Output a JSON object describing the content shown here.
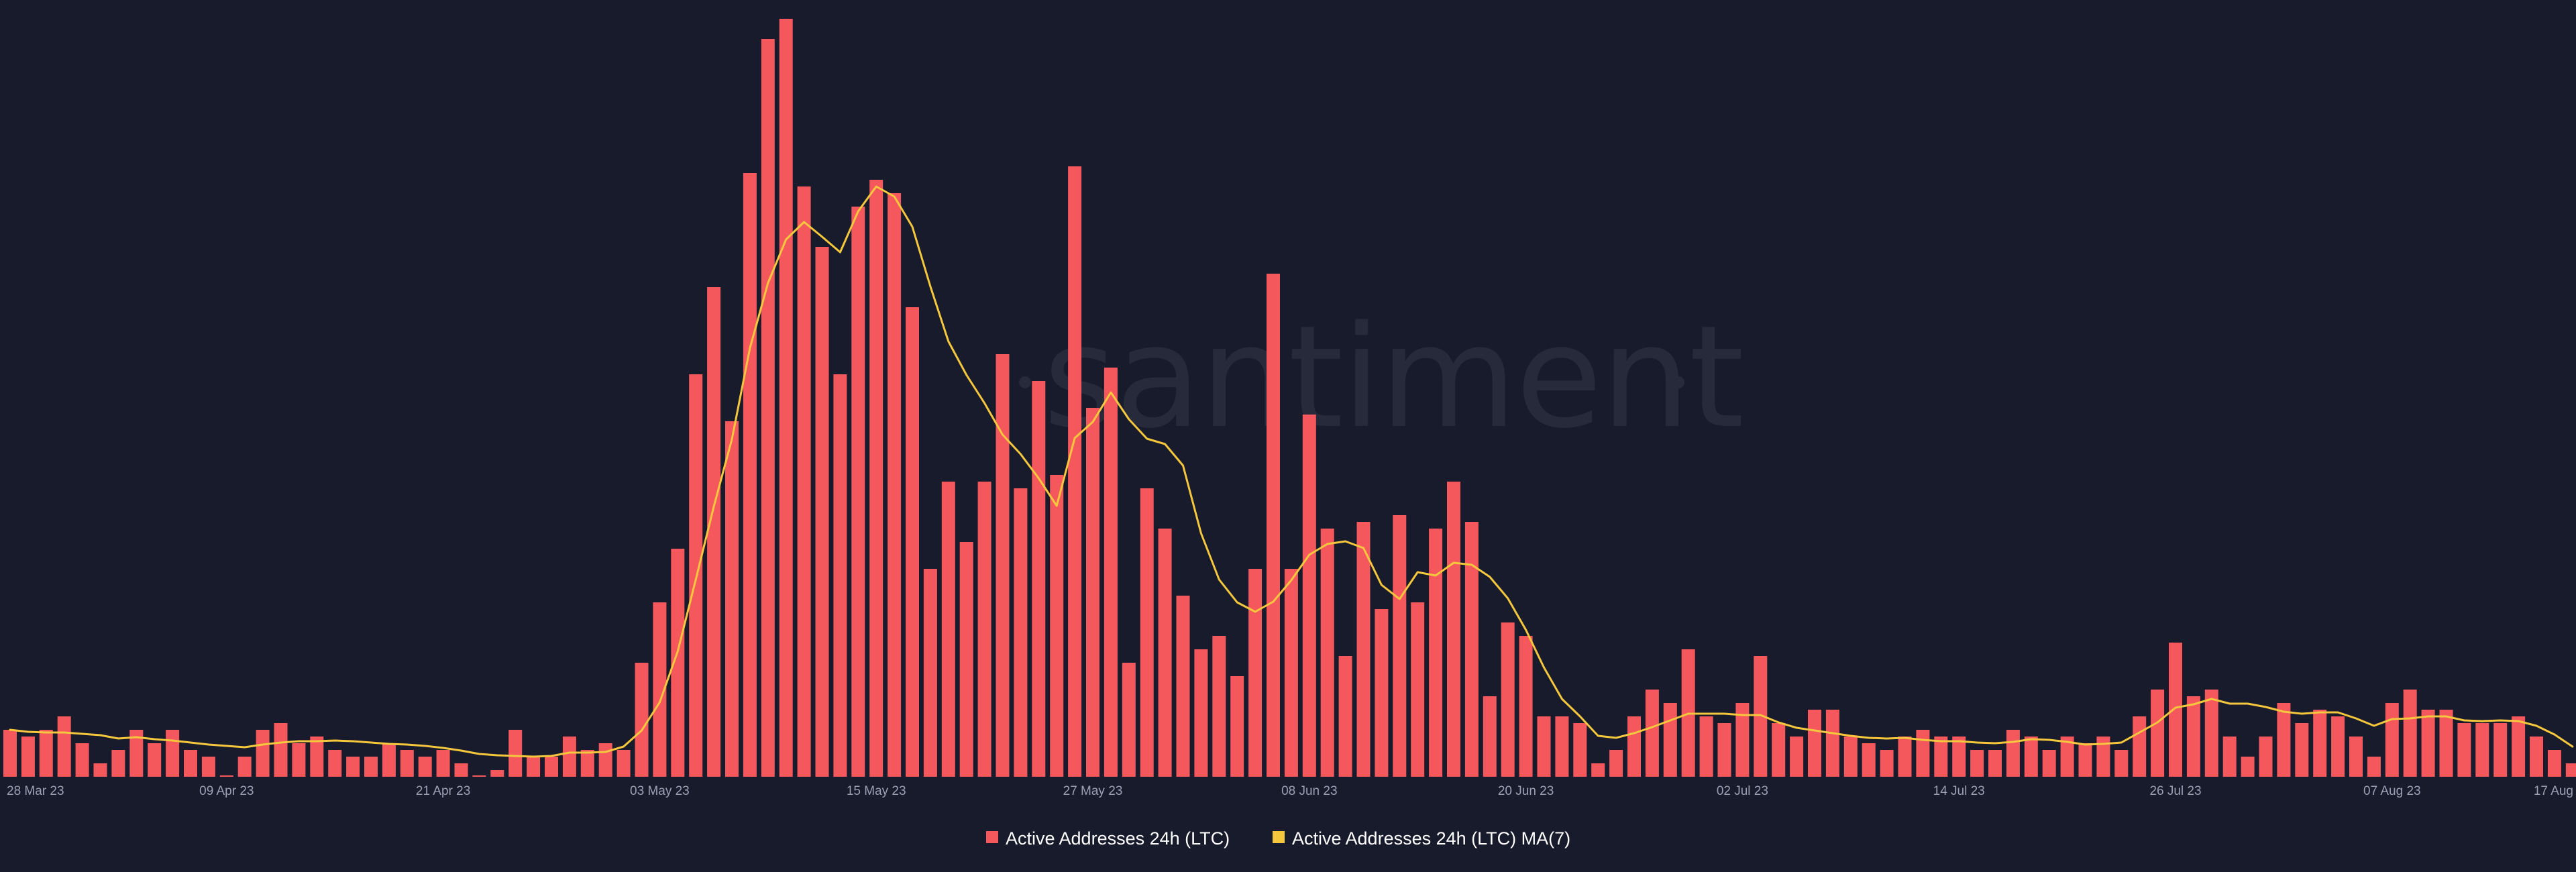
{
  "watermark": "santiment",
  "colors": {
    "background": "#181b2b",
    "bar": "#f4585d",
    "line": "#f5c73d",
    "tick_text": "#9aa0b2",
    "watermark": "#262a3b"
  },
  "chart_data": {
    "type": "bar",
    "x_tick_labels": [
      "28 Mar 23",
      "09 Apr 23",
      "21 Apr 23",
      "03 May 23",
      "15 May 23",
      "27 May 23",
      "08 Jun 23",
      "20 Jun 23",
      "02 Jul 23",
      "14 Jul 23",
      "26 Jul 23",
      "07 Aug 23",
      "17 Aug"
    ],
    "legend": [
      {
        "name": "Active Addresses 24h (LTC)",
        "color": "#f4585d"
      },
      {
        "name": "Active Addresses 24h (LTC) MA(7)",
        "color": "#f5c73d"
      }
    ],
    "series": [
      {
        "name": "Active Addresses 24h (LTC)",
        "type": "bar",
        "values": [
          7,
          6,
          7,
          9,
          5,
          2,
          4,
          7,
          5,
          7,
          4,
          3,
          0,
          3,
          7,
          8,
          5,
          6,
          4,
          3,
          3,
          5,
          4,
          3,
          4,
          2,
          0,
          1,
          7,
          3,
          3,
          6,
          4,
          5,
          4,
          17,
          26,
          34,
          60,
          73,
          53,
          90,
          110,
          113,
          88,
          79,
          60,
          85,
          89,
          87,
          70,
          31,
          44,
          35,
          44,
          63,
          43,
          59,
          45,
          91,
          55,
          61,
          17,
          43,
          37,
          27,
          19,
          21,
          15,
          31,
          75,
          31,
          54,
          37,
          18,
          38,
          25,
          39,
          26,
          37,
          44,
          38,
          12,
          23,
          21,
          9,
          9,
          8,
          2,
          4,
          9,
          13,
          11,
          19,
          9,
          8,
          11,
          18,
          8,
          6,
          10,
          10,
          6,
          5,
          4,
          6,
          7,
          6,
          6,
          4,
          4,
          7,
          6,
          4,
          6,
          5,
          6,
          4,
          9,
          13,
          20,
          12,
          13,
          6,
          3,
          6,
          11,
          8,
          10,
          9,
          6,
          3,
          11,
          13,
          10,
          10,
          8,
          8,
          8,
          9,
          6,
          4,
          2
        ],
        "color": "#f4585d"
      },
      {
        "name": "Active Addresses 24h (LTC) MA(7)",
        "type": "line",
        "values": [
          7,
          6.7,
          6.6,
          6.6,
          6.4,
          6.2,
          5.7,
          5.9,
          5.6,
          5.4,
          5.1,
          4.8,
          4.6,
          4.4,
          4.8,
          5.1,
          5.3,
          5.3,
          5.4,
          5.3,
          5.1,
          4.9,
          4.8,
          4.6,
          4.3,
          3.9,
          3.4,
          3.2,
          3.1,
          3,
          3.1,
          3.6,
          3.6,
          3.7,
          4.5,
          6.9,
          11.1,
          18.7,
          29.4,
          40.3,
          50.3,
          63.9,
          73.6,
          80.1,
          82.7,
          80.5,
          78.2,
          84.3,
          88,
          86.5,
          82,
          73.1,
          64.9,
          59.9,
          55.7,
          51,
          48.1,
          44.5,
          40.4,
          50.5,
          52.9,
          57.3,
          53.3,
          50.4,
          49.6,
          46.4,
          36.3,
          29.4,
          26,
          24.6,
          26.1,
          29.3,
          33.1,
          34.7,
          35.1,
          34.1,
          28.6,
          26.5,
          30.5,
          30,
          31.9,
          31.6,
          29.8,
          26.6,
          21.9,
          16.3,
          11.6,
          9,
          6.1,
          5.8,
          6.5,
          7.4,
          8.4,
          9.4,
          9.4,
          9.4,
          9.2,
          9.2,
          8.1,
          7.3,
          6.9,
          6.5,
          6.1,
          5.8,
          5.7,
          5.8,
          5.5,
          5.3,
          5.3,
          5.1,
          5,
          5.2,
          5.6,
          5.5,
          5.2,
          4.8,
          4.9,
          5.1,
          6.6,
          8.1,
          10.3,
          10.8,
          11.6,
          10.9,
          10.9,
          10.4,
          9.7,
          9.4,
          9.6,
          9.6,
          8.7,
          7.6,
          8.6,
          8.7,
          9,
          9,
          8.4,
          8.3,
          8.4,
          8.3,
          7.6,
          6.3,
          4.5
        ]
      }
    ],
    "grid": false,
    "legend_position": "bottom-center"
  }
}
